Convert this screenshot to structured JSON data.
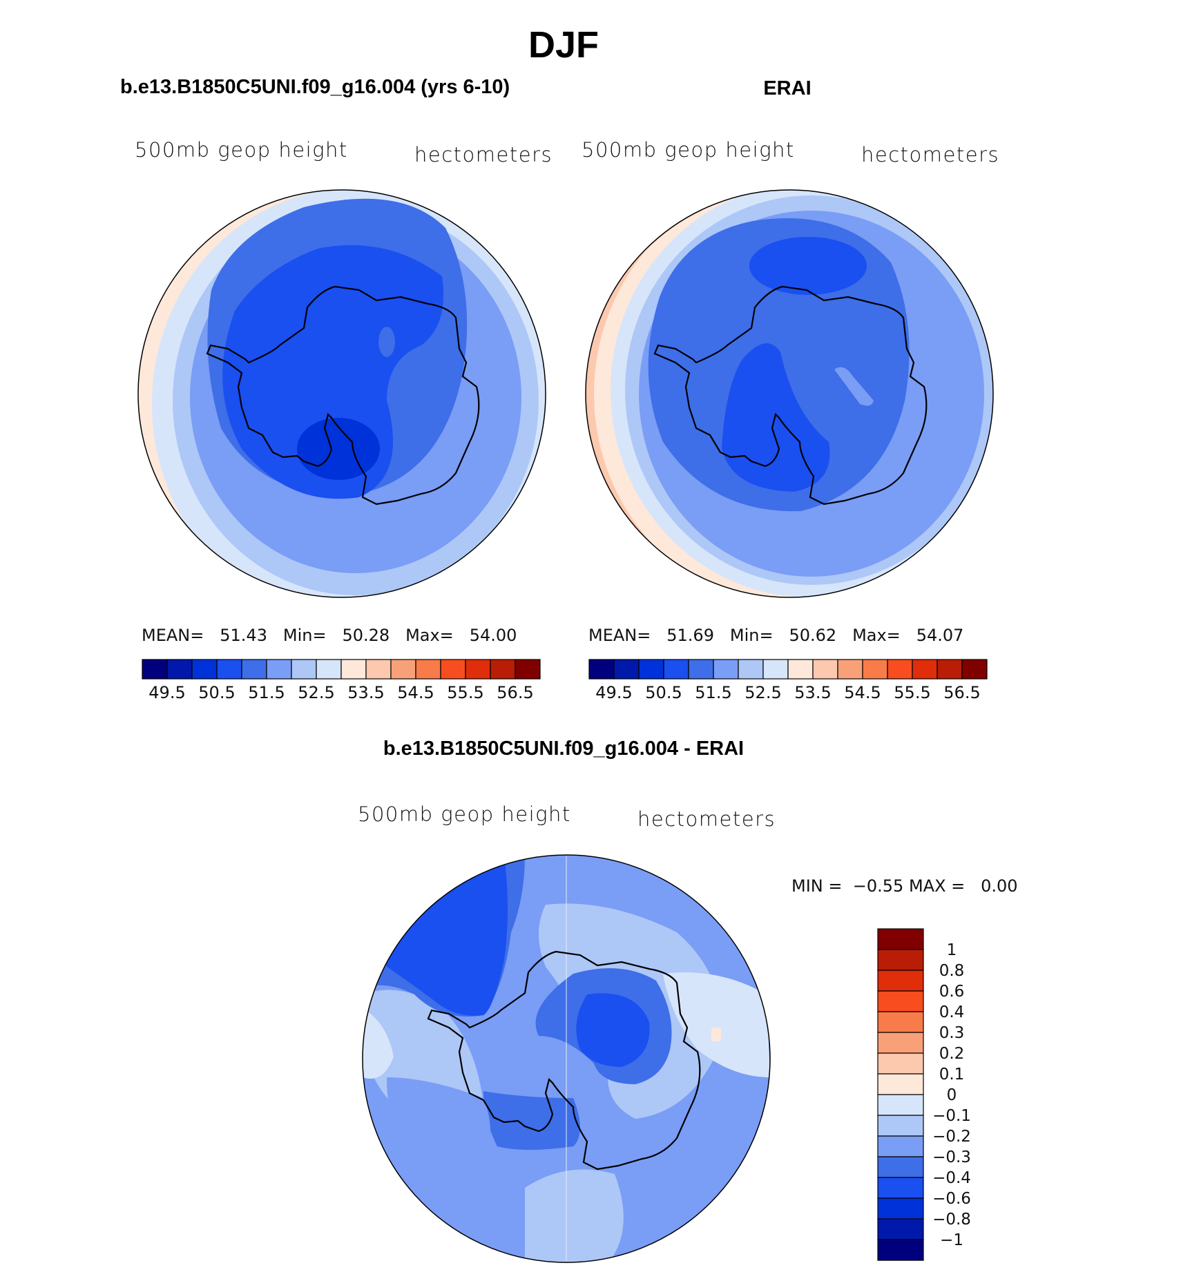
{
  "title": "DJF",
  "panels": [
    {
      "title": "b.e13.B1850C5UNI.f09_g16.004 (yrs 6-10)",
      "left_label": "500mb  geop  height",
      "right_label": "hectometers",
      "stats": {
        "mean_label": "MEAN=",
        "mean": "51.43",
        "min_label": "Min=",
        "min": "50.28",
        "max_label": "Max=",
        "max": "54.00"
      }
    },
    {
      "title": "ERAI",
      "left_label": "500mb  geop  height",
      "right_label": "hectometers",
      "stats": {
        "mean_label": "MEAN=",
        "mean": "51.69",
        "min_label": "Min=",
        "min": "50.62",
        "max_label": "Max=",
        "max": "54.07"
      }
    },
    {
      "title": "b.e13.B1850C5UNI.f09_g16.004 - ERAI",
      "left_label": "500mb  geop  height",
      "right_label": "hectometers",
      "minmax": {
        "min_label": "MIN =",
        "min": "−0.55",
        "max_label": "MAX =",
        "max": "0.00"
      }
    }
  ],
  "colorbar_abs": {
    "tick_labels": [
      "49.5",
      "50.5",
      "51.5",
      "52.5",
      "53.5",
      "54.5",
      "55.5",
      "56.5"
    ],
    "colors": [
      "#00007f",
      "#0019aa",
      "#0032d9",
      "#1a4ff0",
      "#3e6ee8",
      "#7a9df5",
      "#adc7f7",
      "#d6e5fa",
      "#fde8da",
      "#fcc8ae",
      "#f8a179",
      "#f87b4a",
      "#f84d1e",
      "#e02d0a",
      "#b91d06",
      "#800000"
    ]
  },
  "colorbar_diff": {
    "tick_labels": [
      "1",
      "0.8",
      "0.6",
      "0.4",
      "0.3",
      "0.2",
      "0.1",
      "0",
      "−0.1",
      "−0.2",
      "−0.3",
      "−0.4",
      "−0.6",
      "−0.8",
      "−1"
    ],
    "colors": [
      "#800000",
      "#b91d06",
      "#e02d0a",
      "#f84d1e",
      "#f87b4a",
      "#f8a179",
      "#fcc8ae",
      "#fde8da",
      "#d6e5fa",
      "#adc7f7",
      "#7a9df5",
      "#3e6ee8",
      "#1a4ff0",
      "#0032d9",
      "#0019aa",
      "#00007f"
    ]
  }
}
